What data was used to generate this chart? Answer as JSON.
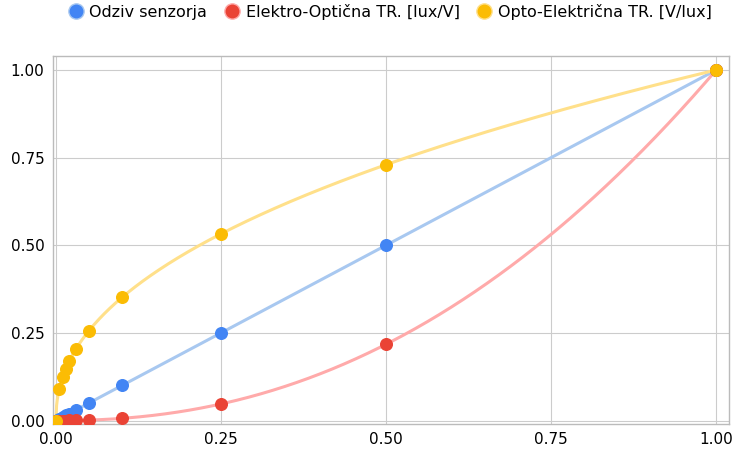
{
  "legend_labels": [
    "Odziv senzorja",
    "Elektro-Optična TR. [lux/V]",
    "Opto-Električna TR. [V/lux]"
  ],
  "blue_line_color": "#A8C8F0",
  "blue_marker_color": "#4285F4",
  "red_line_color": "#FFAAAA",
  "red_marker_color": "#EA4335",
  "yellow_line_color": "#FFE08A",
  "yellow_marker_color": "#FBBC04",
  "gamma": 2.2,
  "scatter_x": [
    0.0,
    0.005,
    0.01,
    0.015,
    0.02,
    0.03,
    0.05,
    0.1,
    0.25,
    0.5,
    1.0
  ],
  "xlim": [
    -0.005,
    1.02
  ],
  "ylim": [
    -0.01,
    1.04
  ],
  "grid_color": "#CCCCCC",
  "bg_color": "#FFFFFF",
  "border_color": "#BBBBBB",
  "figsize": [
    7.52,
    4.66
  ],
  "dpi": 100
}
